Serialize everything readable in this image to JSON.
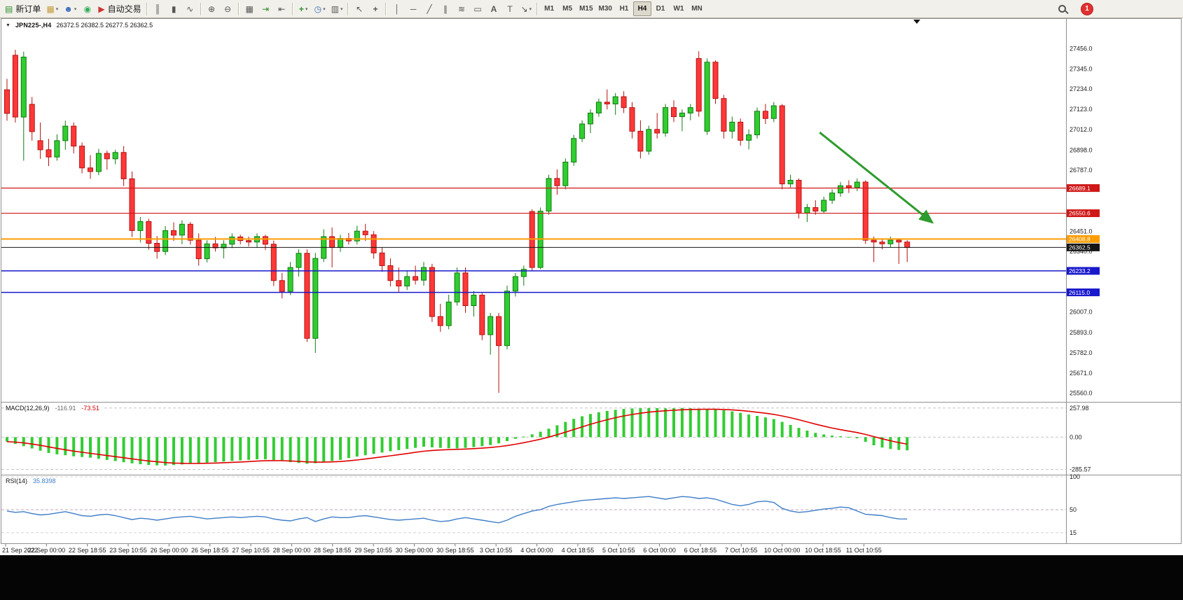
{
  "toolbar": {
    "new_order_label": "新订单",
    "autotrade_label": "自动交易",
    "timeframes": [
      "M1",
      "M5",
      "M15",
      "M30",
      "H1",
      "H4",
      "D1",
      "W1",
      "MN"
    ],
    "active_timeframe": "H4",
    "notification_count": "1"
  },
  "icons": {
    "window_marker": "▼",
    "new_order": "▤",
    "new_chart": "▦",
    "profiles": "☻",
    "market_watch": "◉",
    "autotrade": "▶",
    "bar_chart": "║",
    "candlestick_chart": "▮",
    "line_chart": "∿",
    "zoom_in": "⊕",
    "zoom_out": "⊖",
    "tile_windows": "▦",
    "auto_scroll": "⇥",
    "chart_shift": "⇤",
    "indicators": "+",
    "periods": "◷",
    "templates": "▥",
    "cursor": "↖",
    "crosshair": "+",
    "vertical_line": "│",
    "horizontal_line": "─",
    "trend_line": "╱",
    "channel": "∥",
    "fibonacci": "≋",
    "shapes": "▭",
    "text": "A",
    "text_label": "T",
    "arrows_tool": "↘",
    "caret": "▾"
  },
  "chart_data": [
    {
      "type": "candlestick",
      "title": "JPN225-,H4",
      "ohlc_label": "26372.5 26382.5 26277.5 26362.5",
      "open": "26372.5",
      "high": "26382.5",
      "low": "26277.5",
      "close": "26362.5",
      "price_axis": {
        "min": 25520,
        "max": 27570,
        "tick_labels": [
          "27456.0",
          "27345.0",
          "27234.0",
          "27123.0",
          "27012.0",
          "26898.0",
          "26787.0",
          "26451.0",
          "26340.0",
          "26007.0",
          "25893.0",
          "25782.0",
          "25671.0",
          "25560.0"
        ]
      },
      "time_labels": [
        "21 Sep 2022",
        "22 Sep 00:00",
        "22 Sep 18:55",
        "23 Sep 10:55",
        "26 Sep 00:00",
        "26 Sep 18:55",
        "27 Sep 10:55",
        "28 Sep 00:00",
        "28 Sep 18:55",
        "29 Sep 10:55",
        "30 Sep 00:00",
        "30 Sep 18:55",
        "3 Oct 10:55",
        "4 Oct 00:00",
        "4 Oct 18:55",
        "5 Oct 10:55",
        "6 Oct 00:00",
        "6 Oct 18:55",
        "7 Oct 10:55",
        "10 Oct 00:00",
        "10 Oct 18:55",
        "11 Oct 10:55"
      ],
      "levels": [
        {
          "price": 26689.1,
          "label": "26689.1",
          "color": "#d01818",
          "width": 1.2
        },
        {
          "price": 26550.6,
          "label": "26550.6",
          "color": "#d01818",
          "width": 1.2
        },
        {
          "price": 26408.8,
          "label": "26408.8",
          "color": "#ff9c00",
          "width": 2
        },
        {
          "price": 26362.5,
          "label": "26362.5",
          "color": "#151515",
          "width": 1
        },
        {
          "price": 26233.2,
          "label": "26233.2",
          "color": "#1818cc",
          "width": 1.5
        },
        {
          "price": 26115.0,
          "label": "26115.0",
          "color": "#1818cc",
          "width": 1.5
        }
      ],
      "colors": {
        "up_fill": "#2fce2f",
        "up_border": "#117a11",
        "down_fill": "#ff3838",
        "down_border": "#b51010"
      },
      "arrow": {
        "color": "#2e9b2e",
        "from": {
          "index": 97.5,
          "price": 26995
        },
        "to": {
          "index": 111,
          "price": 26500
        }
      },
      "candles": [
        [
          27230,
          27290,
          27060,
          27100
        ],
        [
          27420,
          27450,
          27050,
          27080
        ],
        [
          27080,
          27440,
          26840,
          27410
        ],
        [
          27150,
          27190,
          26950,
          27000
        ],
        [
          26950,
          27050,
          26850,
          26900
        ],
        [
          26900,
          26960,
          26810,
          26860
        ],
        [
          26860,
          26985,
          26840,
          26950
        ],
        [
          26950,
          27060,
          26900,
          27030
        ],
        [
          27030,
          27050,
          26880,
          26920
        ],
        [
          26920,
          26940,
          26770,
          26800
        ],
        [
          26800,
          26870,
          26740,
          26780
        ],
        [
          26780,
          26905,
          26760,
          26880
        ],
        [
          26880,
          26895,
          26790,
          26850
        ],
        [
          26850,
          26900,
          26820,
          26885
        ],
        [
          26885,
          26920,
          26700,
          26740
        ],
        [
          26740,
          26780,
          26420,
          26455
        ],
        [
          26455,
          26530,
          26390,
          26505
        ],
        [
          26505,
          26520,
          26350,
          26385
        ],
        [
          26385,
          26425,
          26300,
          26340
        ],
        [
          26340,
          26480,
          26320,
          26455
        ],
        [
          26455,
          26500,
          26398,
          26430
        ],
        [
          26430,
          26512,
          26380,
          26490
        ],
        [
          26490,
          26502,
          26378,
          26402
        ],
        [
          26402,
          26440,
          26262,
          26300
        ],
        [
          26300,
          26402,
          26280,
          26382
        ],
        [
          26382,
          26420,
          26340,
          26360
        ],
        [
          26360,
          26402,
          26302,
          26380
        ],
        [
          26380,
          26440,
          26358,
          26420
        ],
        [
          26420,
          26432,
          26380,
          26400
        ],
        [
          26400,
          26422,
          26368,
          26392
        ],
        [
          26392,
          26440,
          26360,
          26422
        ],
        [
          26422,
          26432,
          26348,
          26380
        ],
        [
          26380,
          26400,
          26150,
          26180
        ],
        [
          26180,
          26222,
          26082,
          26120
        ],
        [
          26120,
          26282,
          26100,
          26252
        ],
        [
          26252,
          26352,
          26202,
          26330
        ],
        [
          26330,
          26352,
          25842,
          25862
        ],
        [
          25862,
          26332,
          25782,
          26302
        ],
        [
          26302,
          26462,
          26282,
          26422
        ],
        [
          26422,
          26472,
          26252,
          26362
        ],
        [
          26362,
          26432,
          26338,
          26412
        ],
        [
          26412,
          26442,
          26378,
          26398
        ],
        [
          26398,
          26482,
          26378,
          26452
        ],
        [
          26452,
          26492,
          26398,
          26432
        ],
        [
          26432,
          26452,
          26300,
          26332
        ],
        [
          26332,
          26362,
          26228,
          26262
        ],
        [
          26262,
          26302,
          26148,
          26180
        ],
        [
          26180,
          26252,
          26118,
          26150
        ],
        [
          26150,
          26232,
          26128,
          26202
        ],
        [
          26202,
          26262,
          26158,
          26182
        ],
        [
          26182,
          26282,
          26152,
          26252
        ],
        [
          26252,
          26272,
          25952,
          25982
        ],
        [
          25982,
          26052,
          25898,
          25932
        ],
        [
          25932,
          26102,
          25912,
          26062
        ],
        [
          26062,
          26252,
          26042,
          26222
        ],
        [
          26222,
          26252,
          26002,
          26042
        ],
        [
          26042,
          26122,
          25982,
          26100
        ],
        [
          26100,
          26112,
          25852,
          25882
        ],
        [
          25882,
          26002,
          25772,
          25982
        ],
        [
          25982,
          26002,
          25562,
          25822
        ],
        [
          25822,
          26152,
          25802,
          26122
        ],
        [
          26122,
          26222,
          26092,
          26202
        ],
        [
          26202,
          26262,
          26152,
          26242
        ],
        [
          26560,
          26572,
          26232,
          26252
        ],
        [
          26252,
          26582,
          26242,
          26562
        ],
        [
          26562,
          26762,
          26542,
          26742
        ],
        [
          26742,
          26792,
          26652,
          26702
        ],
        [
          26702,
          26852,
          26682,
          26832
        ],
        [
          26832,
          26982,
          26812,
          26962
        ],
        [
          26962,
          27062,
          26942,
          27042
        ],
        [
          27042,
          27122,
          26992,
          27102
        ],
        [
          27102,
          27182,
          27082,
          27162
        ],
        [
          27162,
          27232,
          27122,
          27152
        ],
        [
          27152,
          27212,
          27092,
          27192
        ],
        [
          27192,
          27222,
          27102,
          27132
        ],
        [
          27132,
          27162,
          26962,
          27002
        ],
        [
          27002,
          27062,
          26852,
          26892
        ],
        [
          26892,
          27032,
          26872,
          27012
        ],
        [
          27012,
          27102,
          26962,
          26992
        ],
        [
          26992,
          27152,
          26972,
          27132
        ],
        [
          27132,
          27172,
          27052,
          27082
        ],
        [
          27082,
          27122,
          27002,
          27102
        ],
        [
          27102,
          27152,
          27062,
          27132
        ],
        [
          27402,
          27442,
          27082,
          27112
        ],
        [
          27002,
          27402,
          26982,
          27382
        ],
        [
          27382,
          27392,
          27152,
          27182
        ],
        [
          27182,
          27202,
          26962,
          27002
        ],
        [
          27002,
          27082,
          26962,
          27052
        ],
        [
          27052,
          27072,
          26922,
          26952
        ],
        [
          26952,
          27012,
          26902,
          26982
        ],
        [
          26982,
          27132,
          26962,
          27112
        ],
        [
          27112,
          27152,
          27042,
          27072
        ],
        [
          27072,
          27162,
          27052,
          27142
        ],
        [
          27142,
          27152,
          26682,
          26712
        ],
        [
          26712,
          26762,
          26692,
          26732
        ],
        [
          26732,
          26742,
          26522,
          26552
        ],
        [
          26552,
          26602,
          26502,
          26582
        ],
        [
          26582,
          26622,
          26542,
          26562
        ],
        [
          26562,
          26642,
          26552,
          26622
        ],
        [
          26622,
          26682,
          26602,
          26662
        ],
        [
          26662,
          26722,
          26642,
          26702
        ],
        [
          26702,
          26732,
          26662,
          26692
        ],
        [
          26692,
          26742,
          26672,
          26722
        ],
        [
          26722,
          26732,
          26382,
          26402
        ],
        [
          26402,
          26422,
          26282,
          26392
        ],
        [
          26392,
          26412,
          26352,
          26382
        ],
        [
          26382,
          26422,
          26362,
          26402
        ],
        [
          26402,
          26412,
          26272,
          26392
        ],
        [
          26392,
          26402,
          26282,
          26362
        ]
      ]
    },
    {
      "type": "bar",
      "name": "MACD",
      "label": "MACD(12,26,9)",
      "macd_value_label": "-116.91",
      "signal_value_label": "-73.51",
      "axis_tick_labels": [
        "257.98",
        "0.00",
        "-285.57"
      ],
      "axis_tick_values": [
        257.98,
        0,
        -285.57
      ],
      "range": {
        "min": -320,
        "max": 300
      },
      "colors": {
        "histogram": "#33cc33",
        "signal": "#e00000"
      },
      "histogram": [
        -40,
        -60,
        -80,
        -100,
        -120,
        -140,
        -152,
        -160,
        -170,
        -176,
        -182,
        -192,
        -202,
        -212,
        -222,
        -232,
        -240,
        -246,
        -250,
        -251,
        -247,
        -242,
        -237,
        -231,
        -226,
        -221,
        -216,
        -211,
        -206,
        -201,
        -196,
        -196,
        -202,
        -212,
        -221,
        -229,
        -236,
        -231,
        -221,
        -211,
        -201,
        -185,
        -172,
        -160,
        -148,
        -136,
        -125,
        -115,
        -105,
        -95,
        -85,
        -90,
        -95,
        -98,
        -100,
        -95,
        -88,
        -80,
        -70,
        -55,
        -35,
        -15,
        5,
        25,
        48,
        75,
        105,
        135,
        162,
        185,
        205,
        220,
        232,
        242,
        250,
        254,
        256,
        258,
        257,
        255,
        256,
        258,
        256,
        252,
        250,
        246,
        238,
        228,
        215,
        200,
        188,
        175,
        160,
        135,
        108,
        82,
        58,
        38,
        24,
        14,
        8,
        2,
        -10,
        -42,
        -72,
        -92,
        -105,
        -113,
        -117
      ]
    },
    {
      "type": "line",
      "name": "RSI",
      "label": "RSI(14)",
      "value_label": "35.8398",
      "axis_tick_labels": [
        "100",
        "50",
        "15"
      ],
      "axis_tick_values": [
        100,
        50,
        15
      ],
      "range": {
        "min": 0,
        "max": 100
      },
      "color": "#3e7ec8",
      "values": [
        48,
        46,
        47,
        44,
        42,
        43,
        45,
        47,
        44,
        41,
        40,
        42,
        43,
        41,
        38,
        35,
        37,
        36,
        34,
        36,
        38,
        39,
        40,
        38,
        36,
        37,
        38,
        39,
        38,
        39,
        40,
        39,
        36,
        34,
        33,
        36,
        38,
        32,
        36,
        39,
        38,
        38,
        40,
        41,
        39,
        37,
        35,
        34,
        35,
        36,
        37,
        34,
        32,
        33,
        36,
        38,
        36,
        34,
        32,
        30,
        34,
        40,
        44,
        48,
        50,
        55,
        58,
        60,
        62,
        64,
        65,
        66,
        67,
        68,
        67,
        68,
        69,
        70,
        68,
        66,
        68,
        70,
        69,
        67,
        68,
        66,
        62,
        58,
        56,
        58,
        62,
        63,
        61,
        52,
        48,
        46,
        47,
        49,
        51,
        52,
        54,
        53,
        48,
        43,
        42,
        41,
        38,
        36,
        35.84
      ]
    }
  ]
}
